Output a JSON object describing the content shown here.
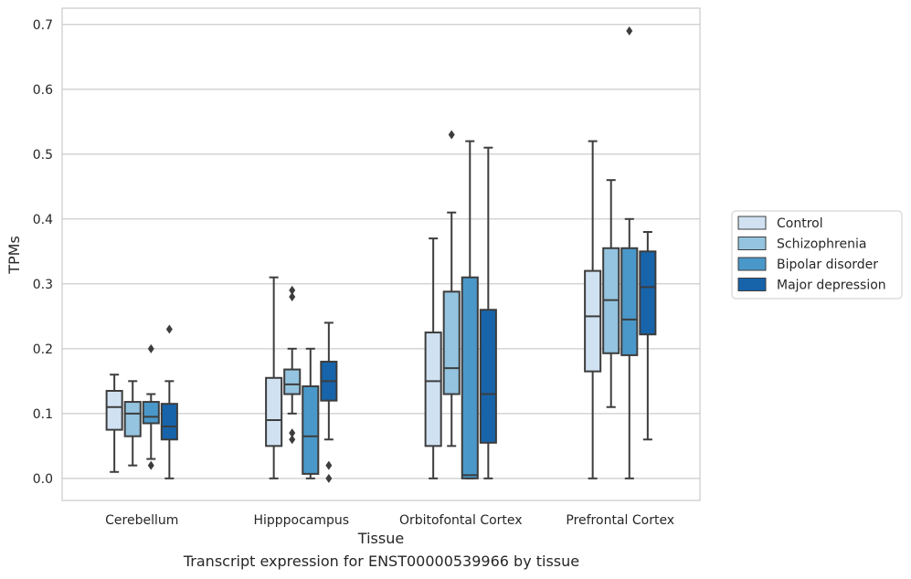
{
  "caption": "Transcript expression for ENST00000539966 by tissue",
  "chart_data": {
    "type": "box",
    "xlabel": "Tissue",
    "ylabel": "TPMs",
    "ylim": [
      -0.034,
      0.725
    ],
    "yticks": [
      "0.0",
      "0.1",
      "0.2",
      "0.3",
      "0.4",
      "0.5",
      "0.6",
      "0.7"
    ],
    "categories": [
      "Cerebellum",
      "Hipppocampus",
      "Orbitofontal Cortex",
      "Prefrontal Cortex"
    ],
    "grid": "horizontal",
    "legend_position": "right",
    "series": [
      {
        "name": "Control",
        "color": "#d0e1f2",
        "boxes": [
          {
            "whisker_low": 0.01,
            "q1": 0.075,
            "median": 0.11,
            "q3": 0.135,
            "whisker_high": 0.16,
            "outliers": []
          },
          {
            "whisker_low": 0.0,
            "q1": 0.05,
            "median": 0.09,
            "q3": 0.155,
            "whisker_high": 0.31,
            "outliers": []
          },
          {
            "whisker_low": 0.0,
            "q1": 0.05,
            "median": 0.15,
            "q3": 0.225,
            "whisker_high": 0.37,
            "outliers": []
          },
          {
            "whisker_low": 0.0,
            "q1": 0.165,
            "median": 0.25,
            "q3": 0.32,
            "whisker_high": 0.52,
            "outliers": []
          }
        ]
      },
      {
        "name": "Schizophrenia",
        "color": "#94c4df",
        "boxes": [
          {
            "whisker_low": 0.02,
            "q1": 0.065,
            "median": 0.1,
            "q3": 0.118,
            "whisker_high": 0.15,
            "outliers": []
          },
          {
            "whisker_low": 0.1,
            "q1": 0.13,
            "median": 0.145,
            "q3": 0.168,
            "whisker_high": 0.2,
            "outliers": [
              0.29,
              0.28,
              0.07,
              0.06
            ]
          },
          {
            "whisker_low": 0.05,
            "q1": 0.13,
            "median": 0.17,
            "q3": 0.288,
            "whisker_high": 0.41,
            "outliers": [
              0.53
            ]
          },
          {
            "whisker_low": 0.11,
            "q1": 0.193,
            "median": 0.275,
            "q3": 0.355,
            "whisker_high": 0.46,
            "outliers": []
          }
        ]
      },
      {
        "name": "Bipolar disorder",
        "color": "#4a98c9",
        "boxes": [
          {
            "whisker_low": 0.03,
            "q1": 0.085,
            "median": 0.095,
            "q3": 0.118,
            "whisker_high": 0.13,
            "outliers": [
              0.2,
              0.02
            ]
          },
          {
            "whisker_low": 0.0,
            "q1": 0.007,
            "median": 0.065,
            "q3": 0.142,
            "whisker_high": 0.2,
            "outliers": []
          },
          {
            "whisker_low": 0.0,
            "q1": 0.0,
            "median": 0.005,
            "q3": 0.31,
            "whisker_high": 0.52,
            "outliers": []
          },
          {
            "whisker_low": 0.0,
            "q1": 0.19,
            "median": 0.245,
            "q3": 0.355,
            "whisker_high": 0.4,
            "outliers": [
              0.69
            ]
          }
        ]
      },
      {
        "name": "Major depression",
        "color": "#1764ab",
        "boxes": [
          {
            "whisker_low": 0.0,
            "q1": 0.06,
            "median": 0.08,
            "q3": 0.115,
            "whisker_high": 0.15,
            "outliers": [
              0.23
            ]
          },
          {
            "whisker_low": 0.06,
            "q1": 0.12,
            "median": 0.15,
            "q3": 0.18,
            "whisker_high": 0.24,
            "outliers": [
              0.02,
              0.0
            ]
          },
          {
            "whisker_low": 0.0,
            "q1": 0.055,
            "median": 0.13,
            "q3": 0.26,
            "whisker_high": 0.51,
            "outliers": []
          },
          {
            "whisker_low": 0.06,
            "q1": 0.222,
            "median": 0.295,
            "q3": 0.35,
            "whisker_high": 0.38,
            "outliers": []
          }
        ]
      }
    ]
  }
}
